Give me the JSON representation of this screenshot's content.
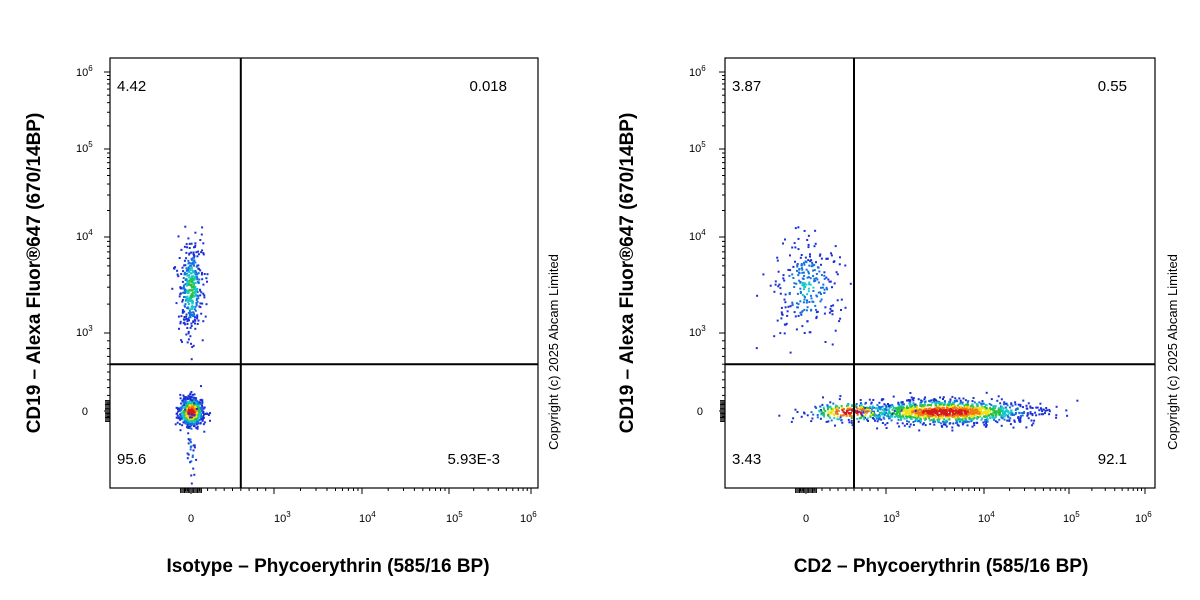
{
  "chart_data": [
    {
      "type": "scatter",
      "subtype": "flow-cytometry-density-dot-plot",
      "xlabel": "Isotype – Phycoerythrin (585/16 BP)",
      "ylabel": "CD19 – Alexa Fluor®647 (670/14BP)",
      "x_scale": "biexponential",
      "y_scale": "biexponential",
      "xlim": [
        -300,
        1000000
      ],
      "ylim": [
        -300,
        1000000
      ],
      "x_ticks": [
        {
          "base": "0",
          "exp": ""
        },
        {
          "base": "10",
          "exp": "3"
        },
        {
          "base": "10",
          "exp": "4"
        },
        {
          "base": "10",
          "exp": "5"
        },
        {
          "base": "10",
          "exp": "6"
        }
      ],
      "y_ticks": [
        {
          "base": "0",
          "exp": ""
        },
        {
          "base": "10",
          "exp": "3"
        },
        {
          "base": "10",
          "exp": "4"
        },
        {
          "base": "10",
          "exp": "5"
        },
        {
          "base": "10",
          "exp": "6"
        }
      ],
      "gate": {
        "x": 600,
        "y": 600
      },
      "quadrants": {
        "upper_left": "4.42",
        "upper_right": "0.018",
        "lower_left": "95.6",
        "lower_right": "5.93E-3"
      },
      "populations": [
        {
          "name": "",
          "x_center": -20,
          "y_center": 0,
          "density": "high"
        },
        {
          "name": "",
          "x_center": -20,
          "y_center": 3000,
          "density": "medium"
        }
      ],
      "copyright": "Copyright (c) 2025 Abcam Limited"
    },
    {
      "type": "scatter",
      "subtype": "flow-cytometry-density-dot-plot",
      "xlabel": "CD2 – Phycoerythrin (585/16 BP)",
      "ylabel": "CD19 – Alexa Fluor®647 (670/14BP)",
      "x_scale": "biexponential",
      "y_scale": "biexponential",
      "xlim": [
        -300,
        1000000
      ],
      "ylim": [
        -300,
        1000000
      ],
      "x_ticks": [
        {
          "base": "0",
          "exp": ""
        },
        {
          "base": "10",
          "exp": "3"
        },
        {
          "base": "10",
          "exp": "4"
        },
        {
          "base": "10",
          "exp": "5"
        },
        {
          "base": "10",
          "exp": "6"
        }
      ],
      "y_ticks": [
        {
          "base": "0",
          "exp": ""
        },
        {
          "base": "10",
          "exp": "3"
        },
        {
          "base": "10",
          "exp": "4"
        },
        {
          "base": "10",
          "exp": "5"
        },
        {
          "base": "10",
          "exp": "6"
        }
      ],
      "gate": {
        "x": 600,
        "y": 600
      },
      "quadrants": {
        "upper_left": "3.87",
        "upper_right": "0.55",
        "lower_left": "3.43",
        "lower_right": "92.1"
      },
      "populations": [
        {
          "name": "",
          "x_center": 0,
          "y_center": 3000,
          "density": "low"
        },
        {
          "name": "",
          "x_center": 4000,
          "y_center": 0,
          "density": "high"
        }
      ],
      "copyright": "Copyright (c) 2025 Abcam Limited"
    }
  ]
}
